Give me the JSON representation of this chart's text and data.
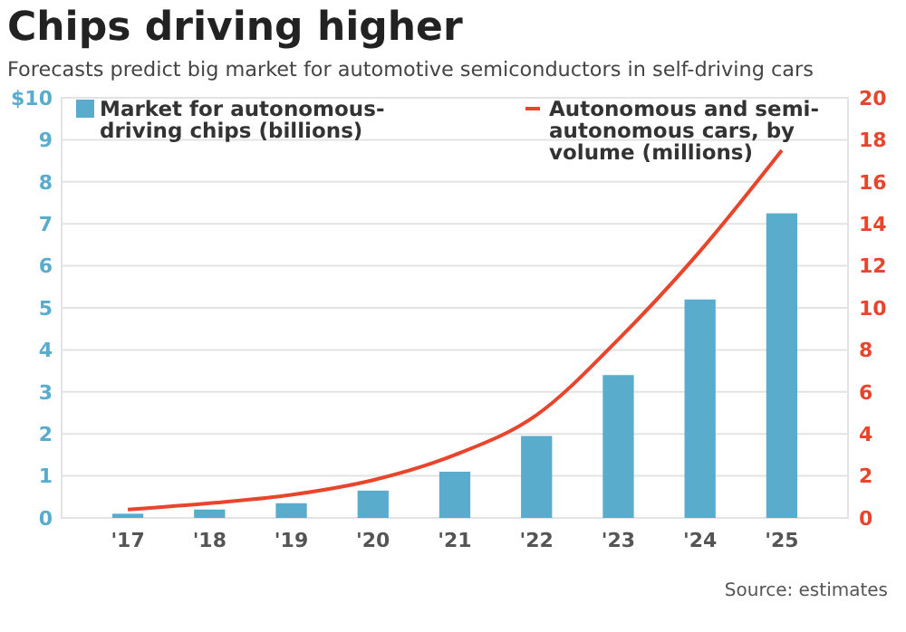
{
  "chart_data": {
    "type": "bar",
    "title": "Chips driving higher",
    "subtitle": "Forecasts predict big market for automotive semiconductors in self-driving cars",
    "categories": [
      "'17",
      "'18",
      "'19",
      "'20",
      "'21",
      "'22",
      "'23",
      "'24",
      "'25"
    ],
    "series": [
      {
        "name": "Market for autonomous-driving chips (billions)",
        "color": "#5aaccd",
        "values": [
          0.1,
          0.2,
          0.35,
          0.65,
          1.1,
          1.95,
          3.4,
          5.2,
          7.25
        ]
      },
      {
        "name": "Autonomous and semi-autonomous cars, by volume (millions)",
        "type": "line",
        "axis": "y2",
        "color": "#e8452c",
        "values": [
          0.4,
          0.7,
          1.1,
          1.8,
          3.0,
          4.9,
          8.5,
          12.7,
          17.5
        ]
      }
    ],
    "ylim": [
      0,
      10
    ],
    "yticks": [
      {
        "value": 0,
        "label": "0"
      },
      {
        "value": 1,
        "label": "1"
      },
      {
        "value": 2,
        "label": "2"
      },
      {
        "value": 3,
        "label": "3"
      },
      {
        "value": 4,
        "label": "4"
      },
      {
        "value": 5,
        "label": "5"
      },
      {
        "value": 6,
        "label": "6"
      },
      {
        "value": 7,
        "label": "7"
      },
      {
        "value": 8,
        "label": "8"
      },
      {
        "value": 9,
        "label": "9"
      },
      {
        "value": 10,
        "label": "$10"
      }
    ],
    "y2lim": [
      0,
      20
    ],
    "y2ticks": [
      0,
      2,
      4,
      6,
      8,
      10,
      12,
      14,
      16,
      18,
      20
    ],
    "grid": "y",
    "legend": "top",
    "marker": "none",
    "line_style": "solid",
    "annotations": [
      "Source: estimates"
    ]
  }
}
